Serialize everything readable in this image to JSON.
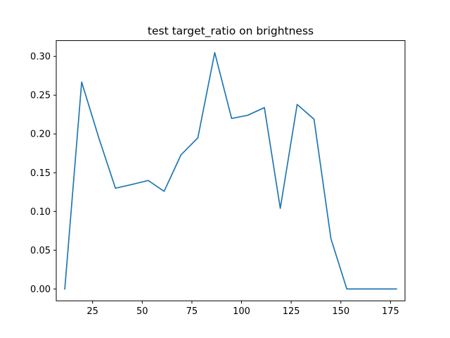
{
  "chart_data": {
    "type": "line",
    "title": "test target_ratio on brightness",
    "xlabel": "",
    "ylabel": "",
    "xlim": [
      6.7,
      182.3
    ],
    "ylim": [
      -0.0153,
      0.3205
    ],
    "xticks": [
      25,
      50,
      75,
      100,
      125,
      150,
      175
    ],
    "xtick_labels": [
      "25",
      "50",
      "75",
      "100",
      "125",
      "150",
      "175"
    ],
    "yticks": [
      0.0,
      0.05,
      0.1,
      0.15,
      0.2,
      0.25,
      0.3
    ],
    "ytick_labels": [
      "0.00",
      "0.05",
      "0.10",
      "0.15",
      "0.20",
      "0.25",
      "0.30"
    ],
    "grid": false,
    "line_color": "#1f77b4",
    "x": [
      11,
      19.5,
      28,
      36.5,
      45,
      53,
      61,
      69.5,
      78,
      86.5,
      95,
      103,
      111.5,
      119.5,
      128,
      136.5,
      145,
      153,
      161.5,
      170,
      178
    ],
    "y": [
      0.0,
      0.267,
      0.196,
      0.13,
      0.135,
      0.14,
      0.126,
      0.173,
      0.195,
      0.305,
      0.22,
      0.224,
      0.234,
      0.104,
      0.238,
      0.219,
      0.065,
      0.0,
      0.0,
      0.0,
      0.0
    ]
  }
}
